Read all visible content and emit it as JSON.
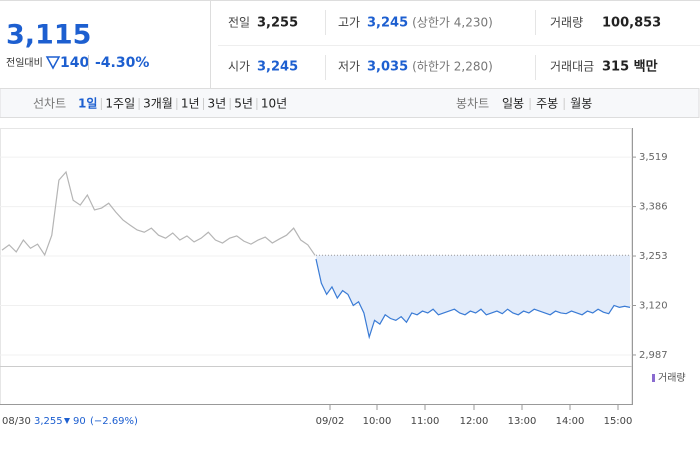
{
  "header": {
    "price": "3,115",
    "change_label": "전일대비",
    "change": "140",
    "change_pct": "-4.30%",
    "stats": [
      [
        {
          "label": "전일",
          "value": "3,255"
        },
        {
          "label": "시가",
          "value": "3,245"
        }
      ],
      [
        {
          "label": "고가",
          "value": "3,245",
          "note": "(상한가 4,230)"
        },
        {
          "label": "저가",
          "value": "3,035",
          "note": "(하한가 2,280)"
        }
      ],
      [
        {
          "label": "거래량",
          "value": "100,853"
        },
        {
          "label": "거래대금",
          "value": "315 백만"
        }
      ]
    ]
  },
  "tabs": {
    "line_label": "선차트",
    "line": [
      "1일",
      "1주일",
      "3개월",
      "1년",
      "3년",
      "5년",
      "10년"
    ],
    "candle_label": "봉차트",
    "candle": [
      "일봉",
      "주봉",
      "월봉"
    ]
  },
  "chart_data": {
    "type": "line",
    "ylim": [
      2960,
      3565
    ],
    "yticks": [
      {
        "value": 3519,
        "label": "3,519"
      },
      {
        "value": 3386,
        "label": "3,386"
      },
      {
        "value": 3253,
        "label": "3,253"
      },
      {
        "value": 3120,
        "label": "3,120"
      },
      {
        "value": 2987,
        "label": "2,987"
      }
    ],
    "reference": 3255,
    "series": [
      {
        "name": "08/30",
        "color": "#b5b5b5",
        "values": [
          3269,
          3283,
          3264,
          3296,
          3274,
          3285,
          3256,
          3309,
          3457,
          3479,
          3403,
          3390,
          3417,
          3377,
          3382,
          3395,
          3371,
          3350,
          3336,
          3323,
          3317,
          3328,
          3309,
          3301,
          3315,
          3296,
          3307,
          3291,
          3301,
          3317,
          3296,
          3288,
          3301,
          3307,
          3293,
          3285,
          3296,
          3304,
          3288,
          3299,
          3309,
          3328,
          3296,
          3283,
          3255
        ]
      },
      {
        "name": "09/02",
        "color": "#3a7bd5",
        "values": [
          3245,
          3180,
          3150,
          3170,
          3140,
          3160,
          3150,
          3120,
          3130,
          3100,
          3035,
          3080,
          3070,
          3095,
          3085,
          3080,
          3090,
          3075,
          3100,
          3095,
          3105,
          3100,
          3110,
          3095,
          3100,
          3105,
          3110,
          3100,
          3095,
          3105,
          3100,
          3110,
          3095,
          3100,
          3105,
          3098,
          3110,
          3100,
          3095,
          3105,
          3100,
          3110,
          3105,
          3100,
          3095,
          3105,
          3100,
          3098,
          3105,
          3100,
          3095,
          3105,
          3100,
          3110,
          3102,
          3098,
          3120,
          3115,
          3118,
          3115
        ]
      }
    ],
    "x_labels": [
      "09/02",
      "10:00",
      "11:00",
      "12:00",
      "13:00",
      "14:00",
      "15:00"
    ],
    "volume_label": "거래량",
    "prev_day": {
      "date": "08/30",
      "close": "3,255",
      "change": "90",
      "change_pct": "(−2.69%)"
    }
  }
}
